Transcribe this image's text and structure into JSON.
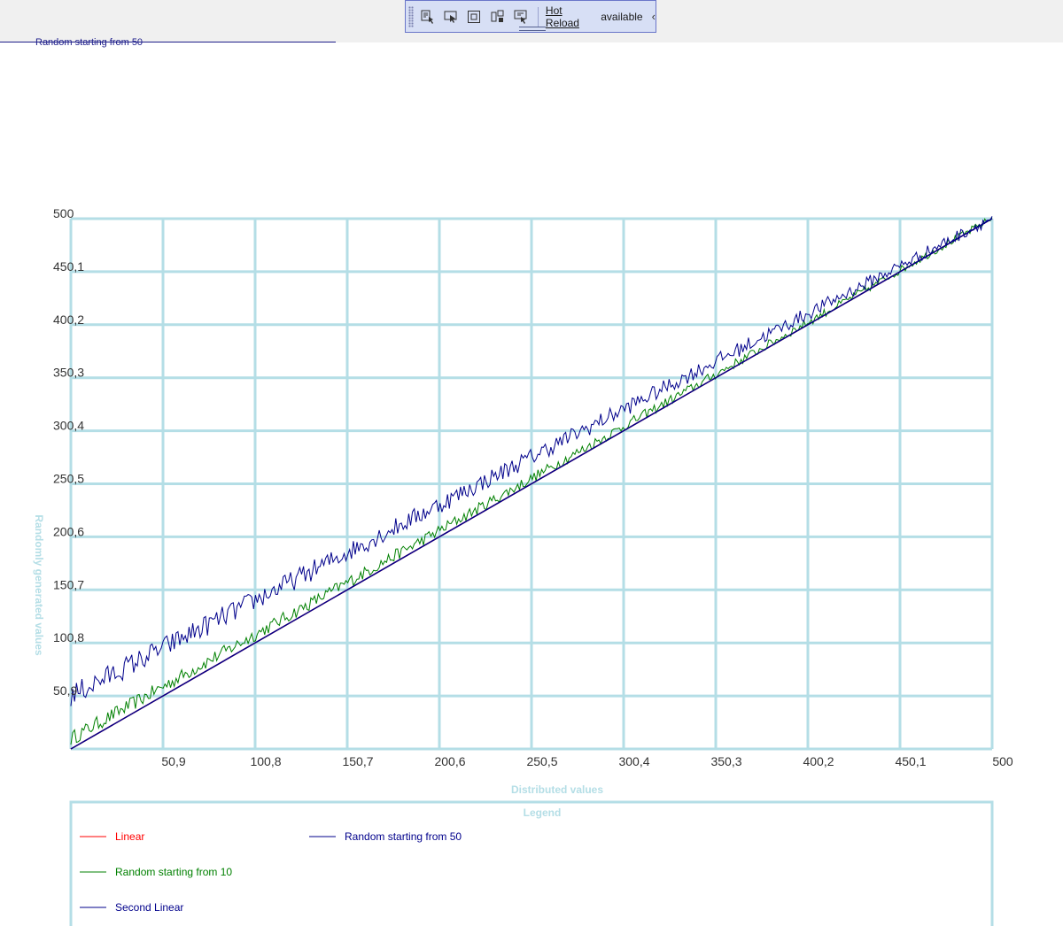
{
  "toolbar": {
    "hot_reload_link": "Hot Reload",
    "hot_reload_status": "available",
    "icons": [
      "select-element-icon",
      "display-adorners-icon",
      "track-focus-icon",
      "layout-adorners-icon",
      "go-to-live-tree-icon"
    ]
  },
  "top_partial_legend": "Random starting from 50",
  "chart_data": {
    "type": "line",
    "xlabel": "Distributed values",
    "ylabel": "Randomly generated values",
    "legend_title": "Legend",
    "x_ticks": [
      "50,9",
      "100,8",
      "150,7",
      "200,6",
      "250,5",
      "300,4",
      "350,3",
      "400,2",
      "450,1",
      "500"
    ],
    "y_ticks": [
      "50,9",
      "100,8",
      "150,7",
      "200,6",
      "250,5",
      "300,4",
      "350,3",
      "400,2",
      "450,1",
      "500"
    ],
    "xlim": [
      1,
      500
    ],
    "ylim": [
      1,
      500
    ],
    "grid": true,
    "legend_position": "bottom",
    "series": [
      {
        "name": "Linear",
        "color": "#ff0000",
        "kind": "linear",
        "x": [
          1,
          500
        ],
        "values": [
          1,
          500
        ]
      },
      {
        "name": "Random starting from 10",
        "color": "#008000",
        "kind": "random",
        "approx_start": 10,
        "approx_end": 500
      },
      {
        "name": "Second Linear",
        "color": "#00008b",
        "kind": "linear",
        "x": [
          1,
          500
        ],
        "values": [
          1,
          500
        ]
      },
      {
        "name": "Random starting from 50",
        "color": "#00008b",
        "kind": "random",
        "approx_start": 50,
        "approx_end": 500
      }
    ]
  }
}
